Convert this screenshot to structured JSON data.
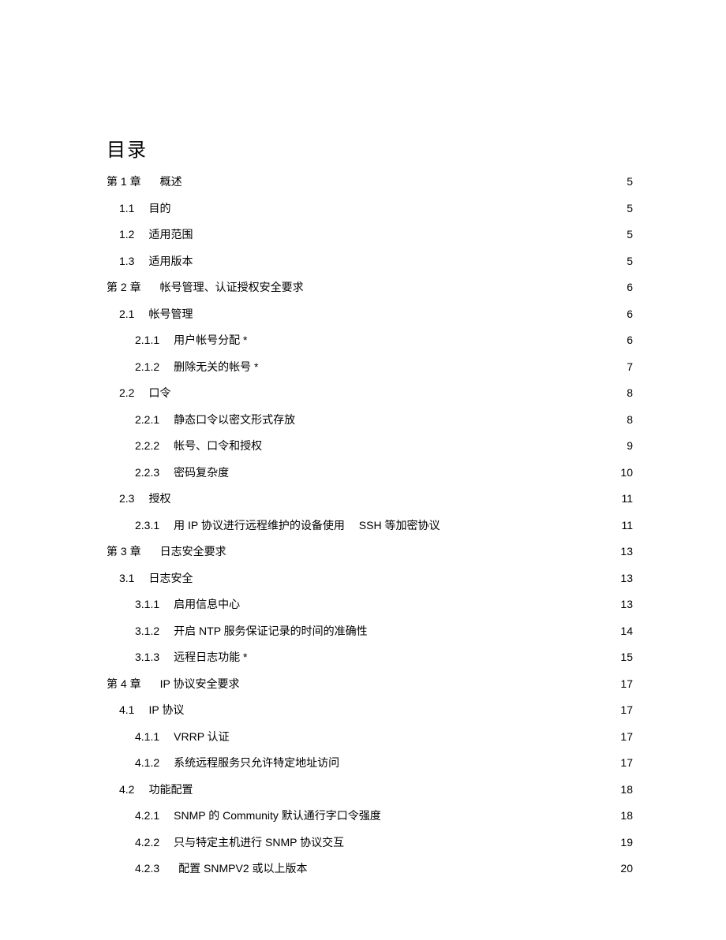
{
  "title": "目录",
  "entries": [
    {
      "indent": 0,
      "num": "第 1 章",
      "gap": "wide",
      "text": "概述",
      "trail": false,
      "page": "5"
    },
    {
      "indent": 1,
      "num": "1.1",
      "gap": "narrow",
      "text": "目的",
      "trail": false,
      "page": "5"
    },
    {
      "indent": 1,
      "num": "1.2",
      "gap": "narrow",
      "text": "适用范围",
      "trail": false,
      "page": "5"
    },
    {
      "indent": 1,
      "num": "1.3",
      "gap": "narrow",
      "text": "适用版本",
      "trail": false,
      "page": "5"
    },
    {
      "indent": 0,
      "num": "第 2 章",
      "gap": "wide",
      "text": "帐号管理、认证授权安全要求",
      "trail": true,
      "page": "6"
    },
    {
      "indent": 1,
      "num": "2.1",
      "gap": "narrow",
      "text": "帐号管理",
      "trail": false,
      "page": "6"
    },
    {
      "indent": 2,
      "num": "2.1.1",
      "gap": "narrow",
      "text": "用户帐号分配 *",
      "trail": false,
      "page": "6"
    },
    {
      "indent": 2,
      "num": "2.1.2",
      "gap": "narrow",
      "text": "删除无关的帐号  *",
      "trail": false,
      "page": "7"
    },
    {
      "indent": 1,
      "num": "2.2",
      "gap": "narrow",
      "text": "口令",
      "trail": false,
      "page": "8"
    },
    {
      "indent": 2,
      "num": "2.2.1",
      "gap": "narrow",
      "text": "静态口令以密文形式存放",
      "trail": true,
      "page": "8"
    },
    {
      "indent": 2,
      "num": "2.2.2",
      "gap": "narrow",
      "text": "帐号、口令和授权",
      "trail": true,
      "page": "9"
    },
    {
      "indent": 2,
      "num": "2.2.3",
      "gap": "narrow",
      "text": "密码复杂度",
      "trail": true,
      "page": "10"
    },
    {
      "indent": 1,
      "num": "2.3",
      "gap": "narrow",
      "text": "授权",
      "trail": false,
      "page": "11"
    },
    {
      "indent": 2,
      "num": "2.3.1",
      "gap": "narrow",
      "text": "用 IP 协议进行远程维护的设备使用  SSH 等加密协议",
      "trail": true,
      "page": "11"
    },
    {
      "indent": 0,
      "num": "第 3 章",
      "gap": "wide",
      "text": "日志安全要求",
      "trail": true,
      "page": "13"
    },
    {
      "indent": 1,
      "num": "3.1",
      "gap": "narrow",
      "text": "日志安全",
      "trail": true,
      "page": "13"
    },
    {
      "indent": 2,
      "num": "3.1.1",
      "gap": "narrow",
      "text": "启用信息中心",
      "trail": true,
      "page": "13"
    },
    {
      "indent": 2,
      "num": "3.1.2",
      "gap": "narrow",
      "text": "开启 NTP 服务保证记录的时间的准确性",
      "trail": true,
      "page": "14"
    },
    {
      "indent": 2,
      "num": "3.1.3",
      "gap": "narrow",
      "text": "远程日志功能 *",
      "trail": false,
      "page": "15"
    },
    {
      "indent": 0,
      "num": "第 4 章",
      "gap": "wide",
      "text": "IP 协议安全要求",
      "trail": true,
      "page": "17"
    },
    {
      "indent": 1,
      "num": "4.1",
      "gap": "narrow",
      "text": "IP 协议",
      "trail": false,
      "page": "17"
    },
    {
      "indent": 2,
      "num": "4.1.1",
      "gap": "narrow",
      "text": "VRRP 认证",
      "trail": false,
      "page": "17"
    },
    {
      "indent": 2,
      "num": "4.1.2",
      "gap": "narrow",
      "text": "系统远程服务只允许特定地址访问",
      "trail": false,
      "page": "17"
    },
    {
      "indent": 1,
      "num": "4.2",
      "gap": "narrow",
      "text": "功能配置",
      "trail": true,
      "page": "18"
    },
    {
      "indent": 2,
      "num": "4.2.1",
      "gap": "narrow",
      "text": "SNMP 的 Community 默认通行字口令强度",
      "trail": true,
      "page": "18"
    },
    {
      "indent": 2,
      "num": "4.2.2",
      "gap": "narrow",
      "text": "只与特定主机进行  SNMP 协议交互",
      "trail": true,
      "page": "19"
    },
    {
      "indent": 2,
      "num": "4.2.3",
      "gap": "wide",
      "text": "配置 SNMPV2 或以上版本",
      "trail": true,
      "page": "20"
    }
  ]
}
